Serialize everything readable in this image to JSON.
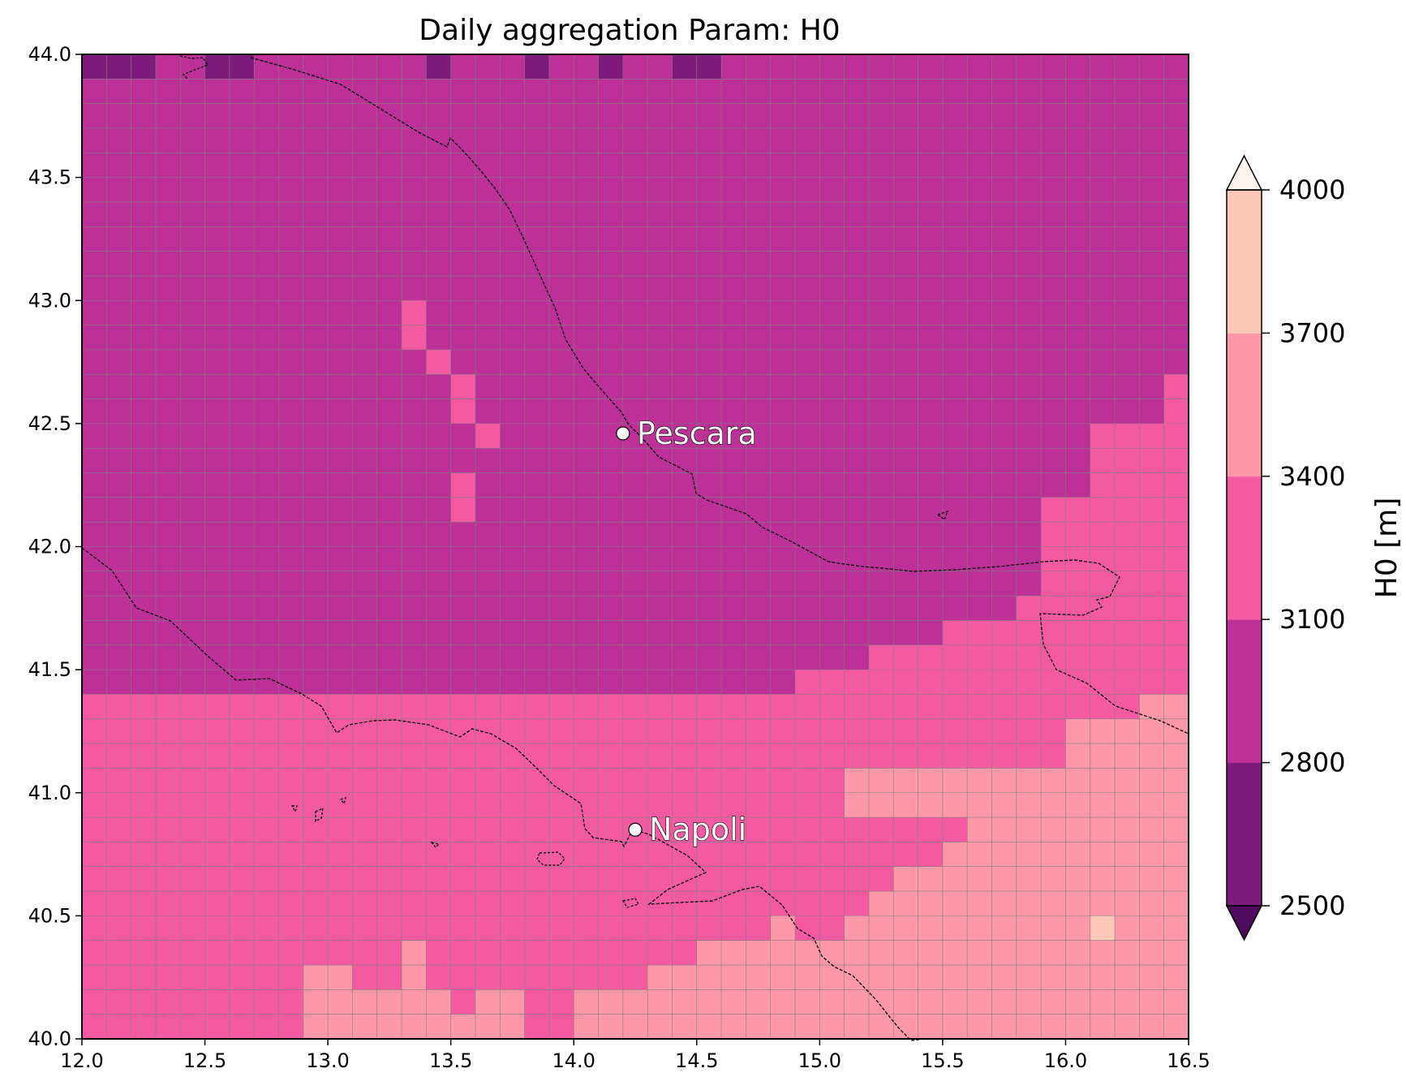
{
  "title": "Daily aggregation Param: H0",
  "map": {
    "lon_range": [
      12.0,
      16.5
    ],
    "lat_range": [
      40.0,
      44.0
    ],
    "x_ticks": [
      "12.0",
      "12.5",
      "13.0",
      "13.5",
      "14.0",
      "14.5",
      "15.0",
      "15.5",
      "16.0",
      "16.5"
    ],
    "y_ticks": [
      "40.0",
      "40.5",
      "41.0",
      "41.5",
      "42.0",
      "42.5",
      "43.0",
      "43.5",
      "44.0"
    ],
    "grid_resolution_deg": 0.1,
    "cities": [
      {
        "name": "Pescara",
        "lon": 14.2,
        "lat": 42.46
      },
      {
        "name": "Napoli",
        "lon": 14.25,
        "lat": 40.85
      }
    ]
  },
  "colorbar": {
    "label": "H0  [m]",
    "ticks": [
      "2500",
      "2800",
      "3100",
      "3400",
      "3700",
      "4000"
    ],
    "bins": [
      {
        "range": [
          null,
          2500
        ],
        "color": "#4d0a5e"
      },
      {
        "range": [
          2500,
          2800
        ],
        "color": "#7d1a7b"
      },
      {
        "range": [
          2800,
          3100
        ],
        "color": "#bc3098"
      },
      {
        "range": [
          3100,
          3400
        ],
        "color": "#f45aa2"
      },
      {
        "range": [
          3400,
          3700
        ],
        "color": "#fc98a7"
      },
      {
        "range": [
          3700,
          4000
        ],
        "color": "#fdc8b9"
      },
      {
        "range": [
          4000,
          null
        ],
        "color": "#fff5f0"
      }
    ],
    "extend": "both"
  },
  "colors": {
    "grid_line": "#7f7f7f",
    "coastline": "#000000"
  }
}
